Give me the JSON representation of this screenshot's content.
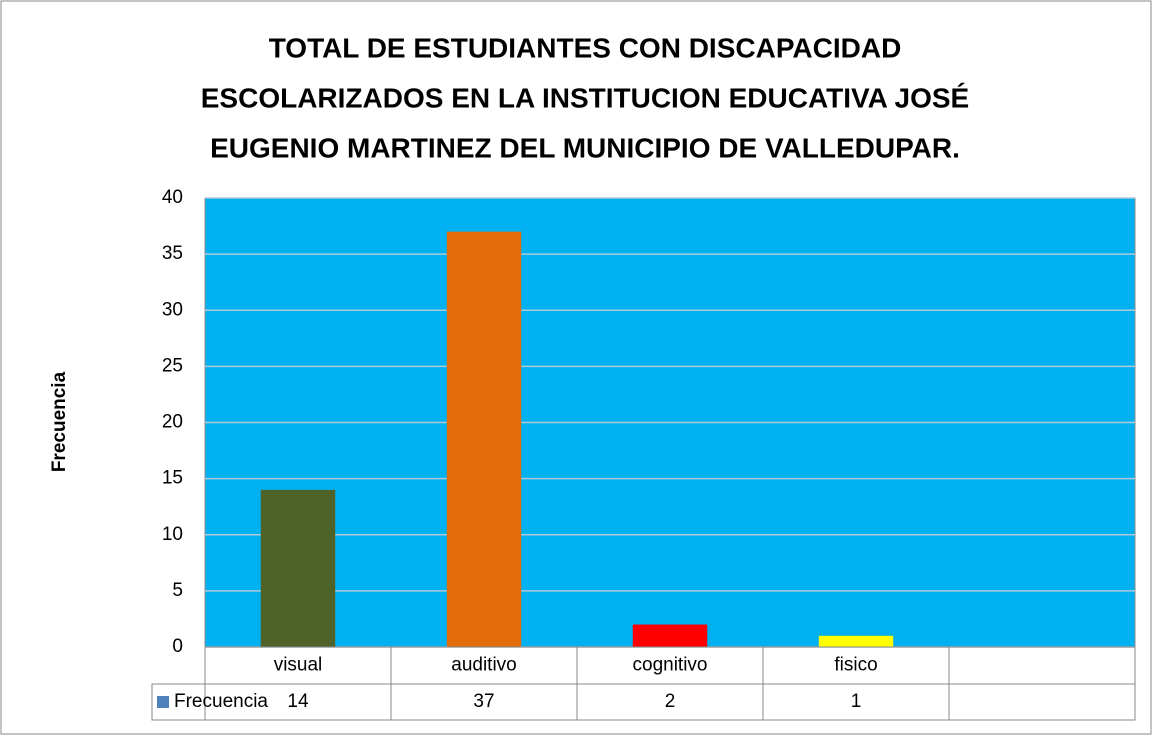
{
  "chart_data": {
    "type": "bar",
    "title": [
      "TOTAL DE ESTUDIANTES CON DISCAPACIDAD",
      "ESCOLARIZADOS EN LA INSTITUCION EDUCATIVA JOSÉ",
      "EUGENIO MARTINEZ DEL MUNICIPIO DE VALLEDUPAR."
    ],
    "y_label": "Frecuencia",
    "categories": [
      "visual",
      "auditivo",
      "cognitivo",
      "fisico",
      null
    ],
    "series": [
      {
        "name": "Frecuencia",
        "color": "#4f81bd",
        "values": [
          14,
          37,
          2,
          1,
          null
        ],
        "colors": [
          "#4f6228",
          "#e46c0a",
          "#ff0000",
          "#ffff00",
          null
        ]
      }
    ],
    "plot_background": "#00b0f0",
    "ylim": [
      0,
      40
    ],
    "yticks": [
      0,
      5,
      10,
      15,
      20,
      25,
      30,
      35,
      40
    ],
    "grid": true,
    "data_table": true
  }
}
